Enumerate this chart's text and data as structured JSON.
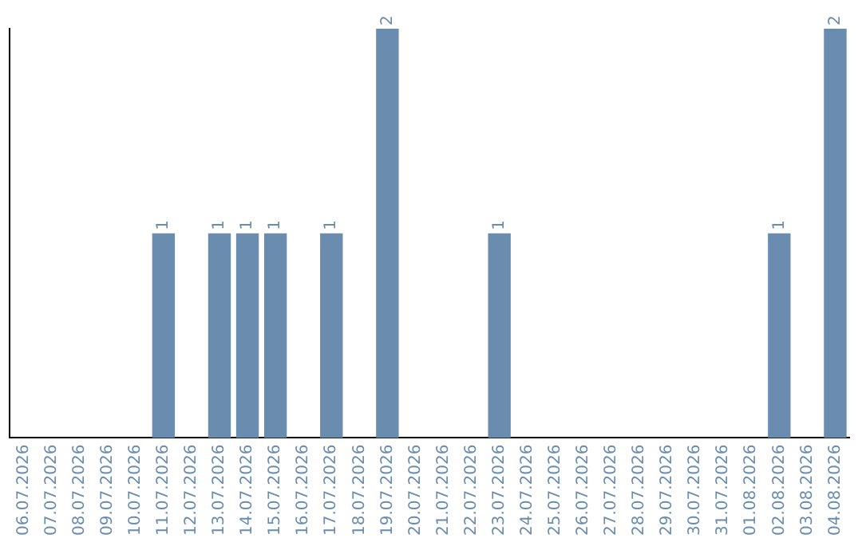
{
  "chart_data": {
    "type": "bar",
    "categories": [
      "06.07.2026",
      "07.07.2026",
      "08.07.2026",
      "09.07.2026",
      "10.07.2026",
      "11.07.2026",
      "12.07.2026",
      "13.07.2026",
      "14.07.2026",
      "15.07.2026",
      "16.07.2026",
      "17.07.2026",
      "18.07.2026",
      "19.07.2026",
      "20.07.2026",
      "21.07.2026",
      "22.07.2026",
      "23.07.2026",
      "24.07.2026",
      "25.07.2026",
      "26.07.2026",
      "27.07.2026",
      "28.07.2026",
      "29.07.2026",
      "30.07.2026",
      "31.07.2026",
      "01.08.2026",
      "02.08.2026",
      "03.08.2026",
      "04.08.2026"
    ],
    "values": [
      0,
      0,
      0,
      0,
      0,
      1,
      0,
      1,
      1,
      1,
      0,
      1,
      0,
      2,
      0,
      0,
      0,
      1,
      0,
      0,
      0,
      0,
      0,
      0,
      0,
      0,
      0,
      1,
      0,
      2
    ],
    "value_labels": [
      null,
      null,
      null,
      null,
      null,
      "1",
      null,
      "1",
      "1",
      "1",
      null,
      "1",
      null,
      "2",
      null,
      null,
      null,
      "1",
      null,
      null,
      null,
      null,
      null,
      null,
      null,
      null,
      null,
      "1",
      null,
      "2"
    ],
    "color": "#6a8caf",
    "ylim": [
      0,
      2
    ],
    "tick_labels": "x",
    "grid": false,
    "legend": false
  }
}
